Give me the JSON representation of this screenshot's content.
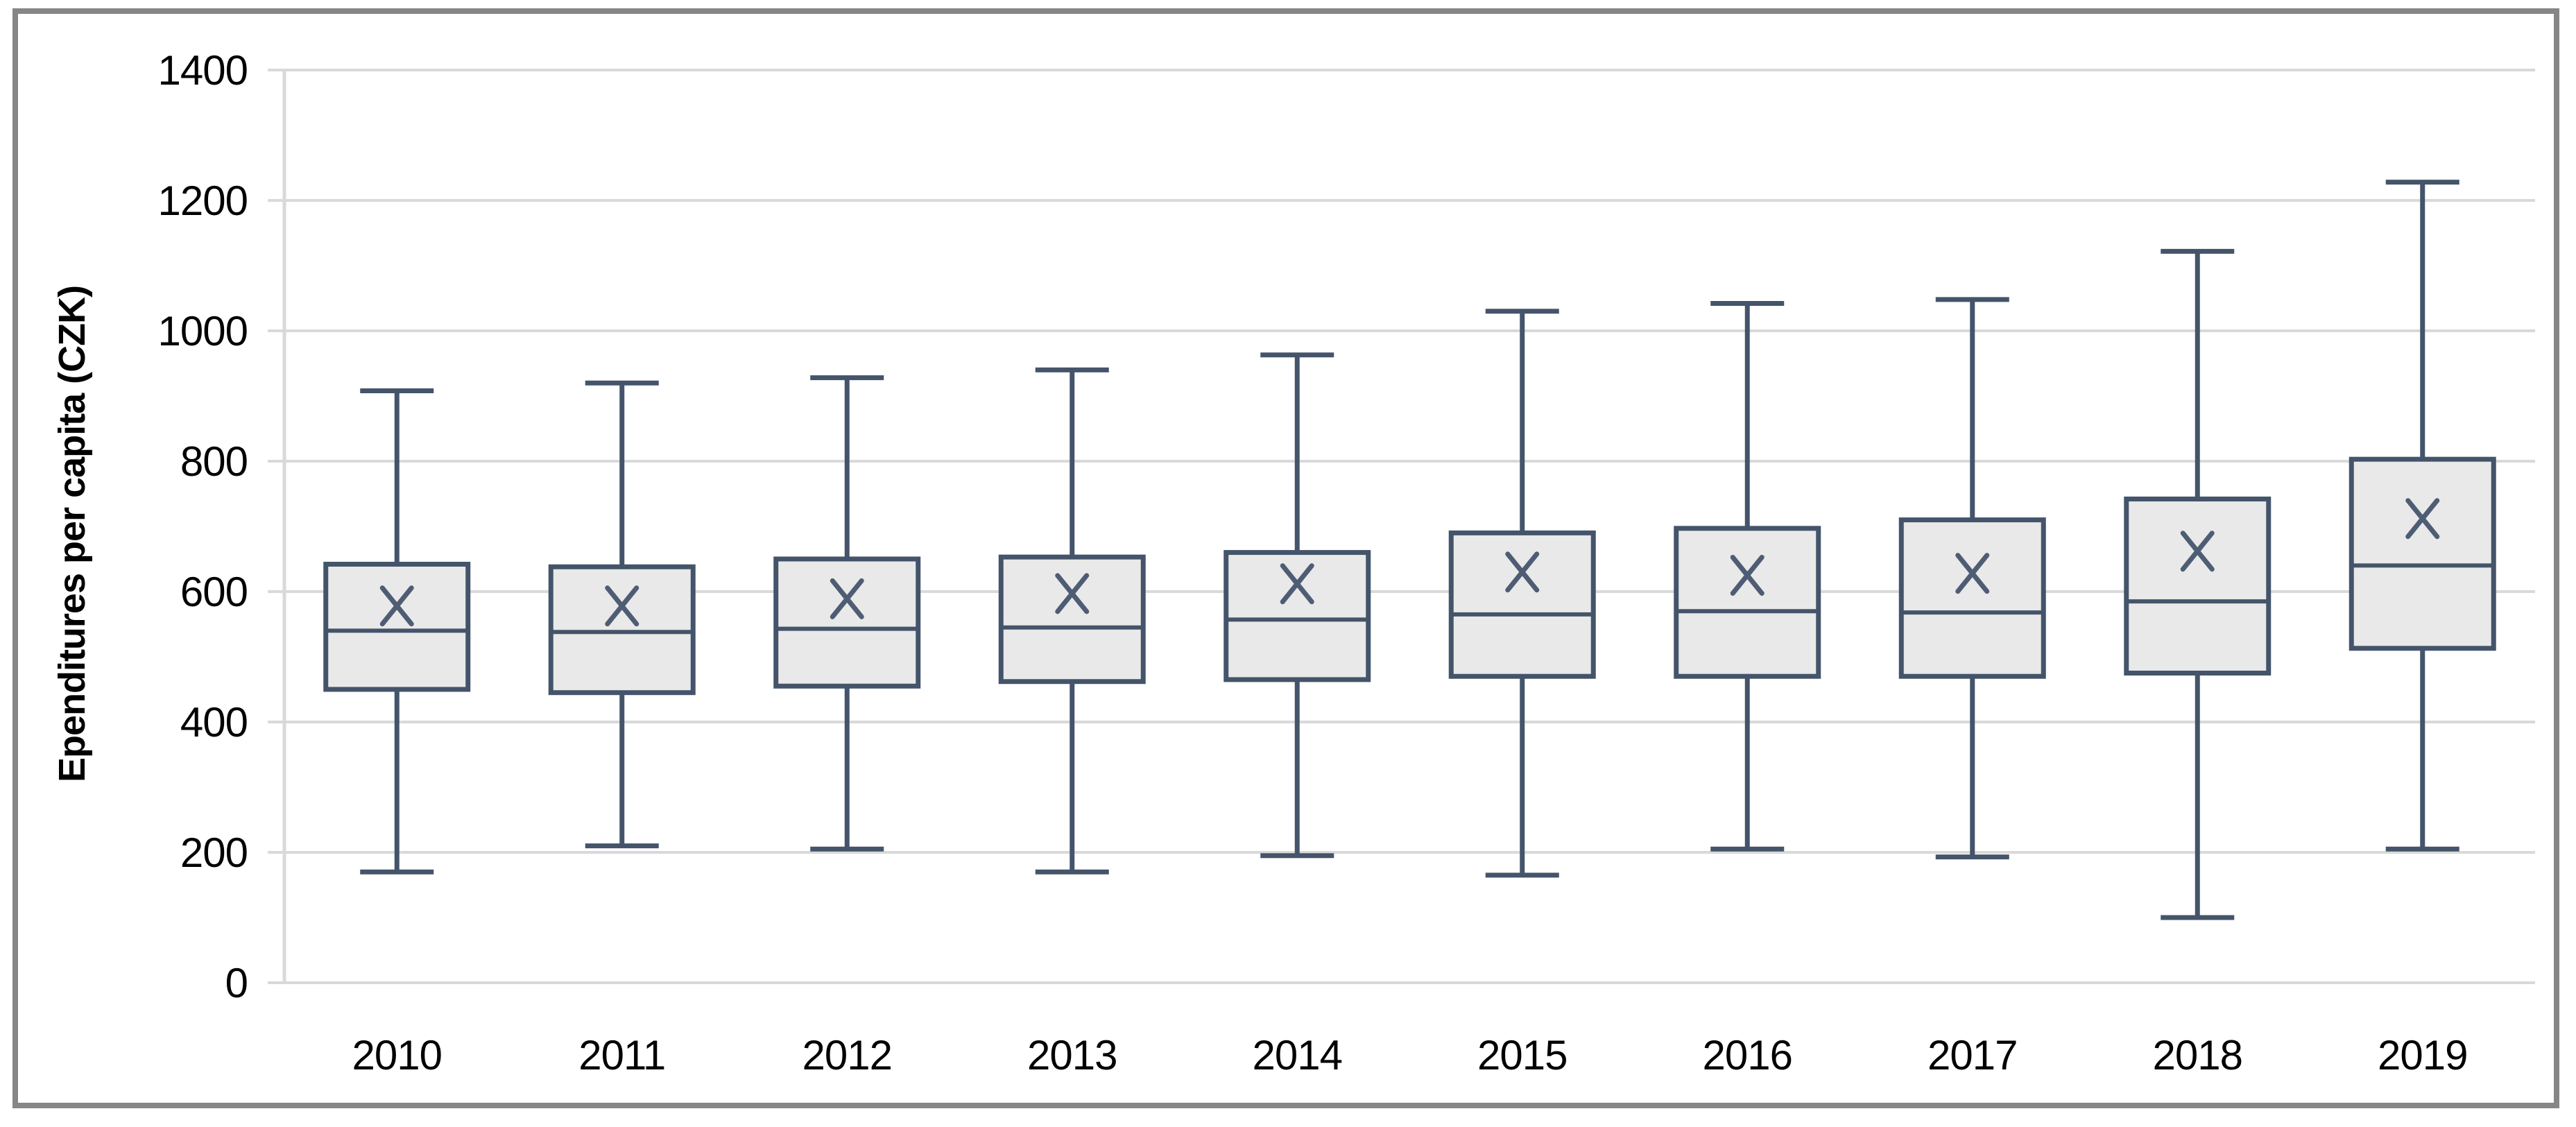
{
  "chart_data": {
    "type": "boxplot",
    "title": "",
    "xlabel": "",
    "ylabel": "Ependitures per capita (CZK)",
    "ylim": [
      0,
      1400
    ],
    "yticks": [
      "0",
      "200",
      "400",
      "600",
      "800",
      "1000",
      "1200",
      "1400"
    ],
    "grid": "horizontal",
    "legend_position": "none",
    "categories": [
      "2010",
      "2011",
      "2012",
      "2013",
      "2014",
      "2015",
      "2016",
      "2017",
      "2018",
      "2019"
    ],
    "series": [
      {
        "label": "2010",
        "whisker_low": 170,
        "q1": 450,
        "median": 540,
        "mean": 578,
        "q3": 642,
        "whisker_high": 908
      },
      {
        "label": "2011",
        "whisker_low": 210,
        "q1": 445,
        "median": 538,
        "mean": 578,
        "q3": 638,
        "whisker_high": 920
      },
      {
        "label": "2012",
        "whisker_low": 205,
        "q1": 455,
        "median": 543,
        "mean": 589,
        "q3": 650,
        "whisker_high": 928
      },
      {
        "label": "2013",
        "whisker_low": 170,
        "q1": 462,
        "median": 545,
        "mean": 597,
        "q3": 653,
        "whisker_high": 940
      },
      {
        "label": "2014",
        "whisker_low": 195,
        "q1": 465,
        "median": 557,
        "mean": 612,
        "q3": 660,
        "whisker_high": 963
      },
      {
        "label": "2015",
        "whisker_low": 165,
        "q1": 470,
        "median": 565,
        "mean": 630,
        "q3": 690,
        "whisker_high": 1030
      },
      {
        "label": "2016",
        "whisker_low": 205,
        "q1": 470,
        "median": 570,
        "mean": 625,
        "q3": 697,
        "whisker_high": 1042
      },
      {
        "label": "2017",
        "whisker_low": 193,
        "q1": 470,
        "median": 568,
        "mean": 628,
        "q3": 710,
        "whisker_high": 1048
      },
      {
        "label": "2018",
        "whisker_low": 100,
        "q1": 475,
        "median": 585,
        "mean": 662,
        "q3": 742,
        "whisker_high": 1122
      },
      {
        "label": "2019",
        "whisker_low": 205,
        "q1": 513,
        "median": 640,
        "mean": 712,
        "q3": 803,
        "whisker_high": 1228
      }
    ],
    "colors": {
      "box_border": "#44546A",
      "box_fill": "#E9E9E9",
      "mean_marker": "#4E5D74",
      "gridline": "#D9D9D9",
      "axis_line": "#D9D9D9",
      "frame_border": "#868686",
      "tick_label": "#000000"
    }
  }
}
